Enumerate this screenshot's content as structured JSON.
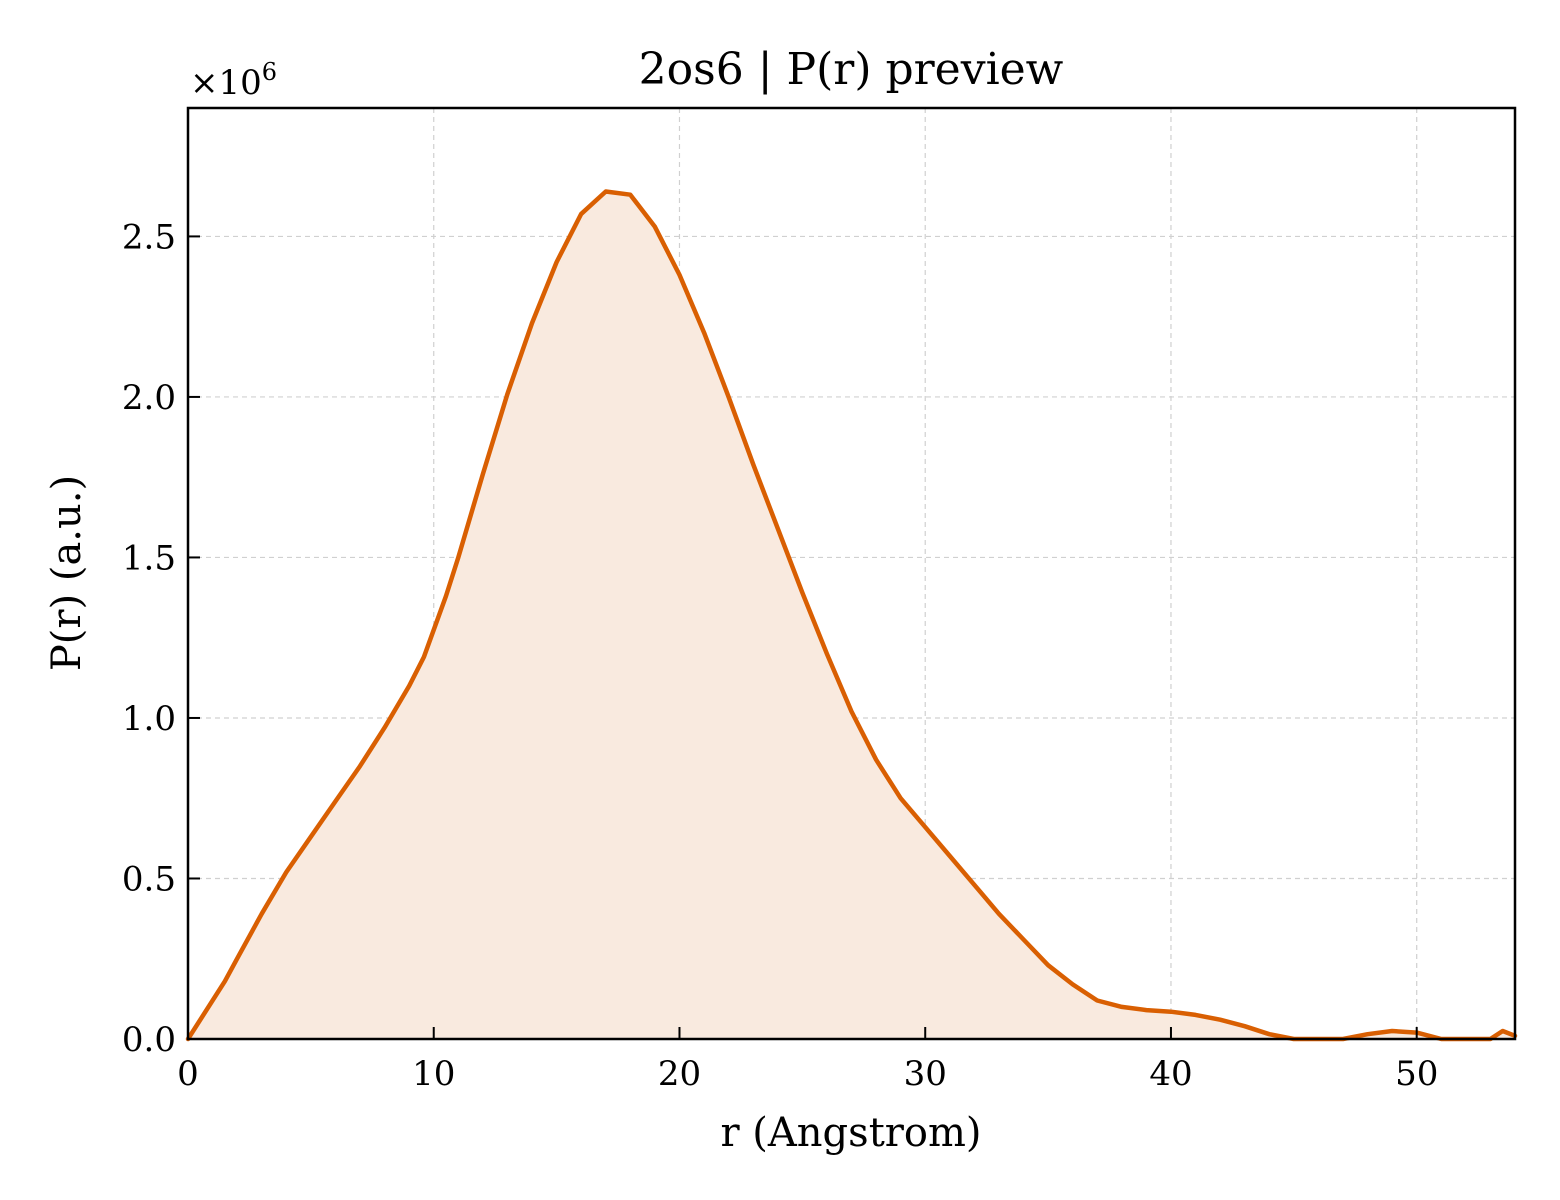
{
  "chart_data": {
    "type": "area",
    "title": "2os6 | P(r) preview",
    "xlabel": "r (Angstrom)",
    "ylabel": "P(r) (a.u.)",
    "y_multiplier_label": "×10",
    "y_multiplier_exponent": "6",
    "xlim": [
      0,
      54
    ],
    "ylim": [
      0,
      2.9
    ],
    "xticks": [
      0,
      10,
      20,
      30,
      40,
      50
    ],
    "xtick_labels": [
      "0",
      "10",
      "20",
      "30",
      "40",
      "50"
    ],
    "yticks": [
      0.0,
      0.5,
      1.0,
      1.5,
      2.0,
      2.5
    ],
    "ytick_labels": [
      "0.0",
      "0.5",
      "1.0",
      "1.5",
      "2.0",
      "2.5"
    ],
    "grid": true,
    "colors": {
      "line": "#d95f02",
      "fill": "#f9eadf"
    },
    "series": [
      {
        "x": [
          0,
          1.5,
          2,
          3,
          4,
          5,
          6,
          7,
          8,
          9,
          9.6,
          10.5,
          11,
          12,
          13,
          14,
          15,
          16,
          17,
          18,
          19,
          20,
          21,
          22,
          23,
          24,
          25,
          26,
          27,
          28,
          29,
          30,
          31,
          32,
          33,
          34,
          35,
          36,
          37,
          38,
          39,
          40,
          41,
          42,
          43,
          44,
          45,
          46,
          47,
          48,
          49,
          50,
          51,
          52,
          53,
          53.5,
          54
        ],
        "y": [
          0.0,
          0.18,
          0.25,
          0.39,
          0.52,
          0.63,
          0.74,
          0.85,
          0.97,
          1.1,
          1.19,
          1.38,
          1.5,
          1.76,
          2.01,
          2.23,
          2.42,
          2.57,
          2.64,
          2.63,
          2.53,
          2.38,
          2.2,
          2.0,
          1.79,
          1.59,
          1.39,
          1.2,
          1.02,
          0.87,
          0.75,
          0.66,
          0.57,
          0.48,
          0.39,
          0.31,
          0.23,
          0.17,
          0.12,
          0.1,
          0.09,
          0.085,
          0.075,
          0.06,
          0.04,
          0.015,
          0.0,
          0.0,
          0.0,
          0.015,
          0.025,
          0.02,
          0.0,
          0.0,
          0.0,
          0.025,
          0.01
        ]
      }
    ]
  }
}
